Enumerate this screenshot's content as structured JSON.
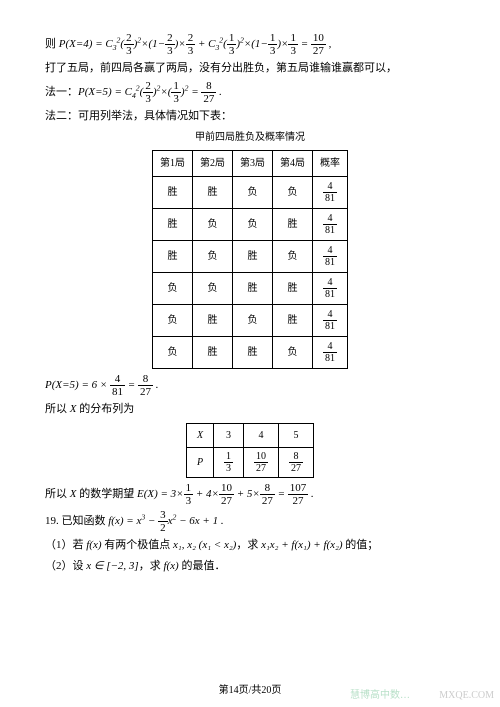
{
  "lines": {
    "l1a": "则 ",
    "l1b": "P(X=4) = C",
    "l1c": " × ",
    "l1d": " + C",
    "l1e": " = ",
    "l2": "打了五局，前四局各赢了两局，没有分出胜负，第五局谁输谁赢都可以，",
    "l3a": "法一：",
    "l3b": "P(X=5) = C",
    "l3c": " = ",
    "l4": "法二：可用列举法，具体情况如下表：",
    "caption1": "甲前四局胜负及概率情况",
    "l5a": "P(X=5) = 6 × ",
    "l5b": " = ",
    "l6a": "所以 ",
    "l6b": "X",
    "l6c": " 的分布列为",
    "l7a": "所以 ",
    "l7b": "X",
    "l7c": " 的数学期望 ",
    "l7d": "E(X) = 3×",
    "l7e": " + 4×",
    "l7f": " + 5×",
    "l7g": " = ",
    "l8a": "19. 已知函数 ",
    "l8b": "f(x) = x",
    "l8c": " − ",
    "l8d": "x",
    "l8e": " − 6x + 1 .",
    "l9a": "（1）若 ",
    "l9b": "f(x)",
    "l9c": " 有两个极值点 ",
    "l9d": "x₁, x₂ (x₁ < x₂)",
    "l9e": "，求 ",
    "l9f": "x₁x₂ + f(x₁) + f(x₂)",
    "l9g": " 的值；",
    "l10a": "（2）设 ",
    "l10b": "x ∈ [−2, 3]",
    "l10c": "，求 ",
    "l10d": "f(x)",
    "l10e": " 的最值．"
  },
  "fractions": {
    "two_thirds": {
      "n": "2",
      "d": "3"
    },
    "one_minus_two_thirds": {
      "n": "1−⅔",
      "d": ""
    },
    "one_third": {
      "n": "1",
      "d": "3"
    },
    "ten_27": {
      "n": "10",
      "d": "27"
    },
    "eight_27": {
      "n": "8",
      "d": "27"
    },
    "four_81": {
      "n": "4",
      "d": "81"
    },
    "three_halves": {
      "n": "3",
      "d": "2"
    },
    "107_27": {
      "n": "107",
      "d": "27"
    }
  },
  "table1": {
    "headers": [
      "第1局",
      "第2局",
      "第3局",
      "第4局",
      "概率"
    ],
    "rows": [
      [
        "胜",
        "胜",
        "负",
        "负"
      ],
      [
        "胜",
        "负",
        "负",
        "胜"
      ],
      [
        "胜",
        "负",
        "胜",
        "负"
      ],
      [
        "负",
        "负",
        "胜",
        "胜"
      ],
      [
        "负",
        "胜",
        "负",
        "胜"
      ],
      [
        "负",
        "胜",
        "胜",
        "负"
      ]
    ],
    "prob": {
      "n": "4",
      "d": "81"
    }
  },
  "table2": {
    "r1": [
      "X",
      "3",
      "4",
      "5"
    ],
    "r2_label": "P",
    "r2_fracs": [
      {
        "n": "1",
        "d": "3"
      },
      {
        "n": "10",
        "d": "27"
      },
      {
        "n": "8",
        "d": "27"
      }
    ]
  },
  "footer": "第14页/共20页",
  "wm1": "慧博高中数…",
  "wm2": "MXQE.COM"
}
